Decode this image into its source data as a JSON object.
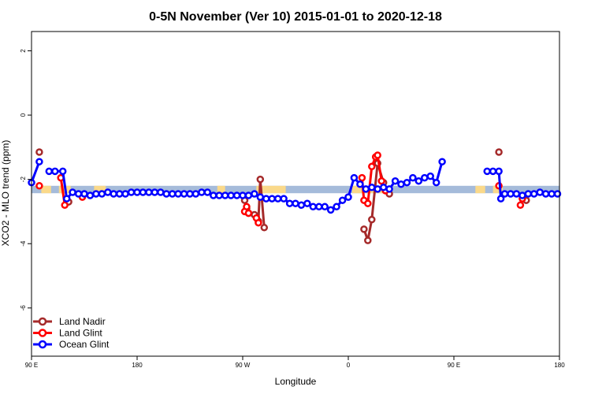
{
  "chart_data": {
    "type": "line",
    "title": "0-5N November (Ver 10)   2015-01-01 to 2020-12-18",
    "xlabel": "Longitude",
    "ylabel": "XCO2 - MLO trend (ppm)",
    "xlim": [
      -90,
      180
    ],
    "ylim": [
      -7.5,
      2.6
    ],
    "x_ticks": [
      {
        "value": -90,
        "label": "90 E"
      },
      {
        "value": -36,
        "label": "180"
      },
      {
        "value": 18,
        "label": "90 W"
      },
      {
        "value": 72,
        "label": "0"
      },
      {
        "value": 126,
        "label": "90 E"
      },
      {
        "value": 180,
        "label": "180"
      }
    ],
    "y_ticks": [
      {
        "value": 2,
        "label": "2"
      },
      {
        "value": 0,
        "label": "0"
      },
      {
        "value": -2,
        "label": "-2"
      },
      {
        "value": -4,
        "label": "-4"
      },
      {
        "value": -6,
        "label": "-6"
      }
    ],
    "surface_band": {
      "y_range": [
        -2.43,
        -2.2
      ],
      "ocean_color": "#a5bbda",
      "land_color": "#fad98a",
      "land_segments": [
        [
          -85,
          -80
        ],
        [
          -76,
          -70
        ],
        [
          -58,
          -52
        ],
        [
          5,
          9
        ],
        [
          25,
          40
        ],
        [
          74,
          92
        ],
        [
          137,
          142
        ],
        [
          146,
          151
        ]
      ]
    },
    "series": [
      {
        "name": "Land Nadir",
        "color": "#a52a2a",
        "segments": [
          [
            [
              -86,
              -1.15
            ],
            [
              -86,
              -1.15
            ]
          ],
          [
            [
              19,
              -2.65
            ],
            [
              20,
              -2.9
            ],
            [
              21,
              -3.05
            ],
            [
              24,
              -3.1
            ],
            [
              26,
              -3.3
            ],
            [
              27,
              -2.0
            ],
            [
              29,
              -3.5
            ]
          ],
          [
            [
              80,
              -3.55
            ],
            [
              82,
              -3.9
            ],
            [
              84,
              -3.25
            ],
            [
              87,
              -1.5
            ],
            [
              90,
              -2.1
            ],
            [
              93,
              -2.45
            ]
          ],
          [
            [
              149,
              -1.15
            ],
            [
              149,
              -1.15
            ]
          ],
          [
            [
              163,
              -2.65
            ],
            [
              163,
              -2.65
            ]
          ],
          [
            [
              -71,
              -2.7
            ],
            [
              -71,
              -2.7
            ]
          ]
        ]
      },
      {
        "name": "Land Glint",
        "color": "#ff0000",
        "segments": [
          [
            [
              -86,
              -2.2
            ],
            [
              -86,
              -2.2
            ]
          ],
          [
            [
              -75,
              -1.95
            ],
            [
              -73,
              -2.8
            ]
          ],
          [
            [
              -64,
              -2.55
            ],
            [
              -64,
              -2.55
            ]
          ],
          [
            [
              19,
              -3.0
            ],
            [
              20,
              -2.85
            ],
            [
              21,
              -3.05
            ]
          ],
          [
            [
              25,
              -3.2
            ],
            [
              26,
              -3.35
            ]
          ],
          [
            [
              79,
              -1.95
            ],
            [
              80,
              -2.65
            ],
            [
              82,
              -2.75
            ],
            [
              84,
              -1.6
            ],
            [
              86,
              -1.3
            ],
            [
              87,
              -1.25
            ],
            [
              89,
              -2.05
            ],
            [
              91,
              -2.35
            ]
          ],
          [
            [
              149,
              -2.2
            ],
            [
              149,
              -2.2
            ]
          ],
          [
            [
              160,
              -2.8
            ],
            [
              161,
              -2.6
            ]
          ]
        ]
      },
      {
        "name": "Ocean Glint",
        "color": "#0000ff",
        "segments": [
          [
            [
              -90,
              -2.1
            ],
            [
              -86,
              -1.45
            ]
          ],
          [
            [
              -81,
              -1.75
            ],
            [
              -78,
              -1.75
            ],
            [
              -74,
              -1.75
            ],
            [
              -72,
              -2.6
            ],
            [
              -69,
              -2.4
            ],
            [
              -66,
              -2.45
            ],
            [
              -63,
              -2.45
            ],
            [
              -60,
              -2.5
            ],
            [
              -57,
              -2.45
            ],
            [
              -54,
              -2.45
            ],
            [
              -51,
              -2.4
            ],
            [
              -48,
              -2.45
            ],
            [
              -45,
              -2.45
            ],
            [
              -42,
              -2.45
            ],
            [
              -39,
              -2.4
            ],
            [
              -36,
              -2.4
            ],
            [
              -33,
              -2.4
            ],
            [
              -30,
              -2.4
            ],
            [
              -27,
              -2.4
            ],
            [
              -24,
              -2.4
            ],
            [
              -21,
              -2.45
            ],
            [
              -18,
              -2.45
            ],
            [
              -15,
              -2.45
            ],
            [
              -12,
              -2.45
            ],
            [
              -9,
              -2.45
            ],
            [
              -6,
              -2.45
            ],
            [
              -3,
              -2.4
            ],
            [
              0,
              -2.4
            ],
            [
              3,
              -2.5
            ],
            [
              6,
              -2.5
            ],
            [
              9,
              -2.5
            ],
            [
              12,
              -2.5
            ],
            [
              15,
              -2.5
            ],
            [
              18,
              -2.5
            ],
            [
              21,
              -2.5
            ],
            [
              24,
              -2.45
            ],
            [
              27,
              -2.55
            ],
            [
              30,
              -2.6
            ],
            [
              33,
              -2.6
            ],
            [
              36,
              -2.6
            ],
            [
              39,
              -2.6
            ],
            [
              42,
              -2.75
            ],
            [
              45,
              -2.75
            ],
            [
              48,
              -2.8
            ],
            [
              51,
              -2.75
            ],
            [
              54,
              -2.85
            ],
            [
              57,
              -2.85
            ],
            [
              60,
              -2.85
            ],
            [
              63,
              -2.95
            ],
            [
              66,
              -2.85
            ],
            [
              69,
              -2.65
            ],
            [
              72,
              -2.55
            ],
            [
              75,
              -1.95
            ],
            [
              78,
              -2.15
            ],
            [
              81,
              -2.3
            ],
            [
              84,
              -2.25
            ],
            [
              87,
              -2.3
            ],
            [
              90,
              -2.25
            ],
            [
              93,
              -2.3
            ],
            [
              96,
              -2.05
            ],
            [
              99,
              -2.15
            ],
            [
              102,
              -2.1
            ],
            [
              105,
              -1.95
            ],
            [
              108,
              -2.05
            ],
            [
              111,
              -1.95
            ],
            [
              114,
              -1.9
            ],
            [
              117,
              -2.1
            ],
            [
              120,
              -1.45
            ]
          ],
          [
            [
              143,
              -1.75
            ],
            [
              146,
              -1.75
            ],
            [
              149,
              -1.75
            ],
            [
              150,
              -2.6
            ],
            [
              152,
              -2.45
            ],
            [
              155,
              -2.45
            ],
            [
              158,
              -2.45
            ],
            [
              161,
              -2.5
            ],
            [
              164,
              -2.45
            ],
            [
              167,
              -2.45
            ],
            [
              170,
              -2.4
            ],
            [
              173,
              -2.45
            ],
            [
              176,
              -2.45
            ],
            [
              179,
              -2.45
            ]
          ]
        ]
      }
    ],
    "legend_position": "bottom-left"
  }
}
